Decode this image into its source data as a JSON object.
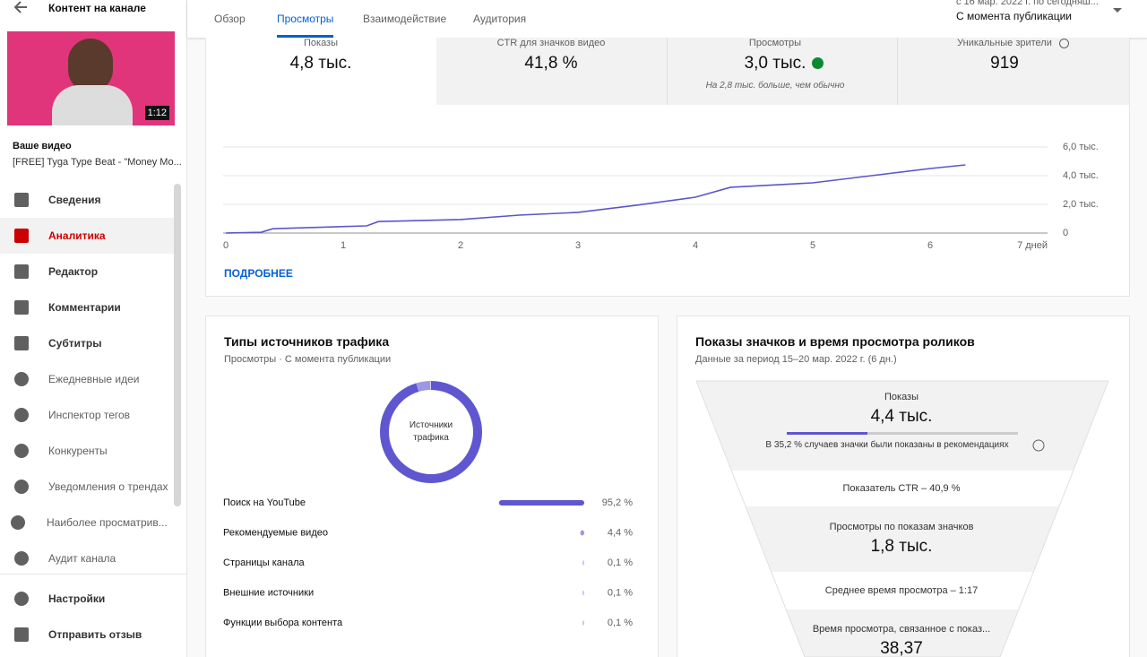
{
  "sidebar": {
    "title": "Контент на канале",
    "thumbnail_duration": "1:12",
    "video_label": "Ваше видео",
    "video_title": "[FREE] Tyga Type Beat - \"Money Mo...",
    "menu": [
      "Сведения",
      "Аналитика",
      "Редактор",
      "Комментарии",
      "Субтитры",
      "Ежедневные идеи",
      "Инспектор тегов",
      "Конкуренты",
      "Уведомления о трендах",
      "Наиболее просматрив...",
      "Аудит канала"
    ],
    "footer": [
      "Настройки",
      "Отправить отзыв"
    ]
  },
  "tabs": [
    "Обзор",
    "Просмотры",
    "Взаимодействие",
    "Аудитория"
  ],
  "date_range": {
    "period": "с 16 мар. 2022 г. по сегодняш...",
    "label": "С момента публикации"
  },
  "metrics": [
    {
      "label": "Показы",
      "value": "4,8 тыс."
    },
    {
      "label": "CTR для значков видео",
      "value": "41,8 %"
    },
    {
      "label": "Просмотры",
      "value": "3,0 тыс.",
      "note": "На 2,8 тыс. больше, чем обычно"
    },
    {
      "label": "Уникальные зрители",
      "value": "919"
    }
  ],
  "more_link": "ПОДРОБНЕЕ",
  "chart_data": [
    {
      "type": "line",
      "x": [
        0,
        0.3,
        0.4,
        1.2,
        1.3,
        2,
        2.5,
        3,
        3.5,
        4,
        4.3,
        5,
        5.5,
        6,
        6.3
      ],
      "values": [
        0,
        50,
        300,
        500,
        800,
        940,
        1250,
        1440,
        1940,
        2500,
        3190,
        3500,
        4000,
        4500,
        4750
      ],
      "color": "#5c56c9",
      "xlim": [
        0,
        7
      ],
      "xticks": [
        0,
        1,
        2,
        3,
        4,
        5,
        6,
        {
          "value": 7,
          "label": "7 дней"
        }
      ],
      "ylim": [
        0,
        6000
      ],
      "yticks": [
        0,
        {
          "value": 2000,
          "label": "2,0 тыс."
        },
        {
          "value": 4000,
          "label": "4,0 тыс."
        },
        {
          "value": 6000,
          "label": "6,0 тыс."
        }
      ],
      "grid": true
    },
    {
      "type": "pie",
      "title": "Типы источников трафика",
      "subtitle": "Просмотры · С момента публикации",
      "center_label": "Источники трафика",
      "categories": [
        "Поиск на YouTube",
        "Рекомендуемые видео",
        "Страницы канала",
        "Внешние источники",
        "Функции выбора контента"
      ],
      "values": [
        95.2,
        4.4,
        0.1,
        0.1,
        0.1
      ],
      "value_labels": [
        "95,2 %",
        "4,4 %",
        "0,1 %",
        "0,1 %",
        "0,1 %"
      ],
      "colors": [
        "#5f57cf",
        "#9d98e2",
        "#c9c6ef",
        "#c9c6ef",
        "#c9c6ef"
      ]
    }
  ],
  "funnel": {
    "title": "Показы значков и время просмотра роликов",
    "subtitle": "Данные за период 15–20 мар. 2022 г. (6 дн.)",
    "stages": [
      {
        "label": "Показы",
        "value": "4,4 тыс.",
        "note": "В 35,2 % случаев значки были показаны в рекомендациях"
      },
      {
        "label": "Показатель CTR – 40,9 %"
      },
      {
        "label": "Просмотры по показам значков",
        "value": "1,8 тыс."
      },
      {
        "label": "Среднее время просмотра – 1:17"
      },
      {
        "label": "Время просмотра, связанное с показ...",
        "value": "38,37"
      }
    ]
  }
}
